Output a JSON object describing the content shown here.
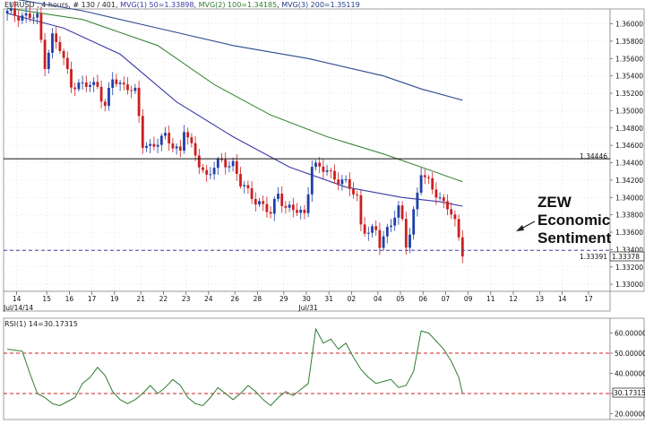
{
  "header": {
    "main_title_parts": [
      {
        "text": "EURUSD , 4 hours, # 130 / 401, ",
        "color": "#222222"
      },
      {
        "text": "MVG(1) 50=1.33898",
        "color": "#3a3aa8"
      },
      {
        "text": ", ",
        "color": "#222222"
      },
      {
        "text": "MVG(2) 100=1.34185",
        "color": "#2e7d32"
      },
      {
        "text": ", ",
        "color": "#222222"
      },
      {
        "text": "MVG(3) 200=1.35119",
        "color": "#1f3c88"
      }
    ],
    "rsi_title": "RSI(1) 14=30.17315"
  },
  "colors": {
    "up": "#1f3fa8",
    "down": "#cc1f1f",
    "ma50": "#3a3aa8",
    "ma100": "#3d8a3d",
    "ma200": "#2b4a8e",
    "rsi": "#2e7d32",
    "hline": "#111111",
    "dashed": "#4040a0",
    "rsi_ref": "#cc2222",
    "grid": "#cfcfcf"
  },
  "annotation": {
    "lines": [
      "ZEW",
      "Economic",
      "Sentiment"
    ]
  },
  "labels": {
    "resistance_label": "1.34446",
    "current_label": "1.33378",
    "bid_label": "1.33391",
    "rsi_current_label": "30.17315"
  },
  "chart_data": [
    {
      "type": "candlestick",
      "symbol": "EURUSD",
      "timeframe": "4 hours",
      "x_ticks": [
        "14",
        "15",
        "16",
        "17",
        "19",
        "21",
        "22",
        "23",
        "24",
        "26",
        "28",
        "29",
        "30",
        "31",
        "02",
        "04",
        "05",
        "06",
        "07",
        "09",
        "11",
        "12",
        "13",
        "14",
        "17"
      ],
      "x_sublabels": [
        "Jul/14/14",
        "Jul/31"
      ],
      "y_ticks": [
        "1.36000",
        "1.35800",
        "1.35600",
        "1.35400",
        "1.35200",
        "1.35000",
        "1.34800",
        "1.34600",
        "1.34400",
        "1.34200",
        "1.34000",
        "1.33800",
        "1.33600",
        "1.33400",
        "1.33200",
        "1.33000"
      ],
      "ylim": [
        1.3295,
        1.3615
      ],
      "n_slots": 155,
      "n_candles": 130,
      "close_path": [
        [
          0,
          1.3612
        ],
        [
          4,
          1.361
        ],
        [
          6,
          1.3608
        ],
        [
          8,
          1.3606
        ],
        [
          10,
          1.3555
        ],
        [
          12,
          1.3585
        ],
        [
          14,
          1.357
        ],
        [
          17,
          1.3532
        ],
        [
          20,
          1.3528
        ],
        [
          24,
          1.353
        ],
        [
          26,
          1.3505
        ],
        [
          28,
          1.3535
        ],
        [
          30,
          1.353
        ],
        [
          32,
          1.353
        ],
        [
          34,
          1.352
        ],
        [
          36,
          1.346
        ],
        [
          38,
          1.346
        ],
        [
          40,
          1.3465
        ],
        [
          42,
          1.3468
        ],
        [
          44,
          1.346
        ],
        [
          46,
          1.3455
        ],
        [
          47,
          1.348
        ],
        [
          49,
          1.3455
        ],
        [
          51,
          1.344
        ],
        [
          53,
          1.3425
        ],
        [
          55,
          1.3435
        ],
        [
          57,
          1.344
        ],
        [
          60,
          1.344
        ],
        [
          62,
          1.3415
        ],
        [
          64,
          1.3405
        ],
        [
          67,
          1.3395
        ],
        [
          70,
          1.338
        ],
        [
          72,
          1.3405
        ],
        [
          74,
          1.339
        ],
        [
          76,
          1.3385
        ],
        [
          79,
          1.338
        ],
        [
          81,
          1.344
        ],
        [
          83,
          1.3432
        ],
        [
          85,
          1.343
        ],
        [
          88,
          1.3422
        ],
        [
          90,
          1.3415
        ],
        [
          93,
          1.34
        ],
        [
          94,
          1.337
        ],
        [
          96,
          1.336
        ],
        [
          98,
          1.336
        ],
        [
          99,
          1.3345
        ],
        [
          101,
          1.3365
        ],
        [
          103,
          1.338
        ],
        [
          104,
          1.3385
        ],
        [
          105,
          1.337
        ],
        [
          106,
          1.3345
        ],
        [
          107,
          1.336
        ],
        [
          108,
          1.3385
        ],
        [
          110,
          1.343
        ],
        [
          111,
          1.342
        ],
        [
          113,
          1.341
        ],
        [
          115,
          1.34
        ],
        [
          117,
          1.339
        ],
        [
          118,
          1.338
        ],
        [
          119,
          1.3368
        ],
        [
          120,
          1.3352
        ],
        [
          121,
          1.3338
        ]
      ],
      "moving_averages": [
        {
          "name": "MVG(1) 50",
          "last": 1.33898,
          "points": [
            [
              0,
              1.3612
            ],
            [
              15,
              1.3595
            ],
            [
              30,
              1.3565
            ],
            [
              45,
              1.351
            ],
            [
              60,
              1.347
            ],
            [
              75,
              1.3435
            ],
            [
              90,
              1.3412
            ],
            [
              105,
              1.34
            ],
            [
              115,
              1.3395
            ],
            [
              121,
              1.339
            ]
          ]
        },
        {
          "name": "MVG(2) 100",
          "last": 1.34185,
          "points": [
            [
              0,
              1.3618
            ],
            [
              20,
              1.3605
            ],
            [
              40,
              1.3575
            ],
            [
              55,
              1.353
            ],
            [
              70,
              1.3495
            ],
            [
              85,
              1.347
            ],
            [
              100,
              1.345
            ],
            [
              110,
              1.3435
            ],
            [
              121,
              1.3418
            ]
          ]
        },
        {
          "name": "MVG(3) 200",
          "last": 1.35119,
          "points": [
            [
              0,
              1.363
            ],
            [
              20,
              1.3615
            ],
            [
              40,
              1.3595
            ],
            [
              60,
              1.3575
            ],
            [
              80,
              1.356
            ],
            [
              100,
              1.354
            ],
            [
              110,
              1.3525
            ],
            [
              121,
              1.3512
            ]
          ]
        }
      ],
      "horizontal_lines": [
        {
          "value": 1.34446,
          "style": "solid"
        },
        {
          "value": 1.33391,
          "style": "dashed"
        }
      ]
    },
    {
      "type": "line",
      "name": "RSI(1) 14",
      "last": 30.17315,
      "y_ticks": [
        "60.000000",
        "50.000000",
        "40.000000",
        "30.000000",
        "20.000000"
      ],
      "ylim": [
        18,
        66
      ],
      "reference_levels": [
        50,
        30
      ],
      "points": [
        [
          0,
          52
        ],
        [
          4,
          51
        ],
        [
          6,
          40
        ],
        [
          8,
          30
        ],
        [
          10,
          28
        ],
        [
          12,
          25
        ],
        [
          14,
          24
        ],
        [
          16,
          26
        ],
        [
          18,
          28
        ],
        [
          20,
          35
        ],
        [
          22,
          38
        ],
        [
          24,
          43
        ],
        [
          26,
          39
        ],
        [
          28,
          31
        ],
        [
          30,
          27
        ],
        [
          32,
          25
        ],
        [
          34,
          27
        ],
        [
          36,
          30
        ],
        [
          38,
          34
        ],
        [
          40,
          30
        ],
        [
          42,
          33
        ],
        [
          44,
          37
        ],
        [
          46,
          34
        ],
        [
          48,
          28
        ],
        [
          50,
          25
        ],
        [
          52,
          24
        ],
        [
          54,
          28
        ],
        [
          56,
          33
        ],
        [
          58,
          30
        ],
        [
          60,
          27
        ],
        [
          62,
          30
        ],
        [
          64,
          34
        ],
        [
          66,
          31
        ],
        [
          68,
          27
        ],
        [
          70,
          24
        ],
        [
          72,
          28
        ],
        [
          74,
          31
        ],
        [
          76,
          29
        ],
        [
          78,
          32
        ],
        [
          80,
          35
        ],
        [
          82,
          62
        ],
        [
          84,
          55
        ],
        [
          86,
          57
        ],
        [
          88,
          52
        ],
        [
          90,
          55
        ],
        [
          92,
          48
        ],
        [
          94,
          42
        ],
        [
          96,
          38
        ],
        [
          98,
          35
        ],
        [
          100,
          36
        ],
        [
          102,
          37
        ],
        [
          104,
          33
        ],
        [
          106,
          34
        ],
        [
          108,
          41
        ],
        [
          110,
          61
        ],
        [
          112,
          60
        ],
        [
          114,
          56
        ],
        [
          116,
          52
        ],
        [
          118,
          46
        ],
        [
          120,
          38
        ],
        [
          121,
          30.17
        ]
      ]
    }
  ]
}
